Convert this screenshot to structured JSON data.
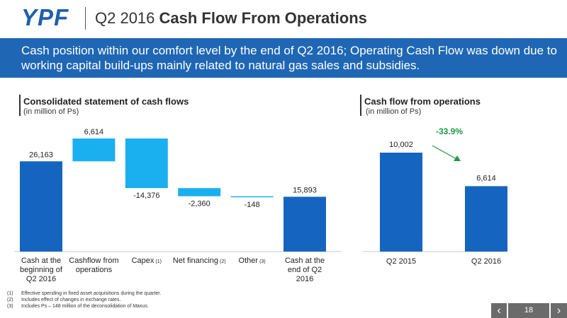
{
  "header": {
    "logo_text": "YPF",
    "title_prefix": "Q2 2016 ",
    "title_bold": "Cash Flow From Operations"
  },
  "banner": {
    "text": "Cash position within our comfort level by the end of Q2 2016; Operating Cash Flow was down due to working capital build-ups mainly related to natural gas sales and subsidies."
  },
  "left_section": {
    "title": "Consolidated statement of cash flows",
    "subtitle": "(in million of Ps)"
  },
  "right_section": {
    "title": "Cash flow from operations",
    "subtitle": "(in million of Ps)",
    "change_label": "-33.9%"
  },
  "chart_data": [
    {
      "type": "bar",
      "subtype": "waterfall",
      "title": "Consolidated statement of cash flows",
      "subtitle": "(in million of Ps)",
      "categories": [
        [
          "Cash at the",
          "beginning of",
          "Q2 2016"
        ],
        [
          "Cashflow from",
          "operations"
        ],
        [
          "Capex",
          "(1)"
        ],
        [
          "Net financing",
          "(2)"
        ],
        [
          "Other",
          "(3)"
        ],
        [
          "Cash at the",
          "end of Q2",
          "2016"
        ]
      ],
      "values": [
        26163,
        6614,
        -14376,
        -2360,
        -148,
        15893
      ],
      "value_labels": [
        "26,163",
        "6,614",
        "-14,376",
        "-2,360",
        "-148",
        "15,893"
      ],
      "bar_kinds": [
        "total",
        "delta",
        "delta",
        "delta",
        "delta",
        "total"
      ],
      "ylim": [
        0,
        35000
      ],
      "colors": {
        "total": "#1565c0",
        "delta": "#1ab0ef"
      },
      "grid": false
    },
    {
      "type": "bar",
      "title": "Cash flow from operations",
      "subtitle": "(in million of Ps)",
      "categories": [
        "Q2 2015",
        "Q2 2016"
      ],
      "values": [
        10002,
        6614
      ],
      "value_labels": [
        "10,002",
        "6,614"
      ],
      "change_label": "-33.9%",
      "ylim": [
        0,
        12000
      ],
      "colors": {
        "bar": "#1565c0",
        "change": "#1e9a45"
      },
      "grid": false
    }
  ],
  "footnotes": [
    {
      "num": "(1)",
      "text": "Effective spending in fixed asset acquisitions during the quarter."
    },
    {
      "num": "(2)",
      "text": "Includes effect of changes in exchange rates."
    },
    {
      "num": "(3)",
      "text": "Includes Ps – 148 million of the deconsolidation of Maxus."
    }
  ],
  "pager": {
    "prev": "‹",
    "page": "18",
    "next": "›"
  },
  "icons": {
    "logo": "ypf-logo",
    "prev": "chevron-left-icon",
    "next": "chevron-right-icon",
    "trend": "arrow-down-right-icon"
  }
}
